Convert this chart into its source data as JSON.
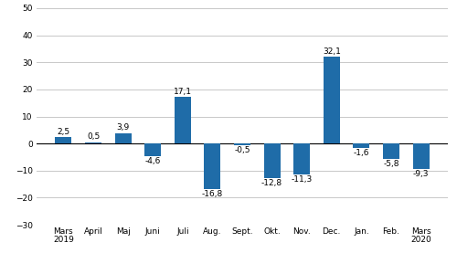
{
  "categories": [
    "Mars\n2019",
    "April",
    "Maj",
    "Juni",
    "Juli",
    "Aug.",
    "Sept.",
    "Okt.",
    "Nov.",
    "Dec.",
    "Jan.",
    "Feb.",
    "Mars\n2020"
  ],
  "values": [
    2.5,
    0.5,
    3.9,
    -4.6,
    17.1,
    -16.8,
    -0.5,
    -12.8,
    -11.3,
    32.1,
    -1.6,
    -5.8,
    -9.3
  ],
  "bar_color": "#1F6CA8",
  "ylim": [
    -30,
    50
  ],
  "yticks": [
    -30,
    -20,
    -10,
    0,
    10,
    20,
    30,
    40,
    50
  ],
  "background_color": "#ffffff",
  "grid_color": "#c8c8c8",
  "value_fontsize": 6.5,
  "tick_fontsize": 6.5,
  "bar_width": 0.55
}
